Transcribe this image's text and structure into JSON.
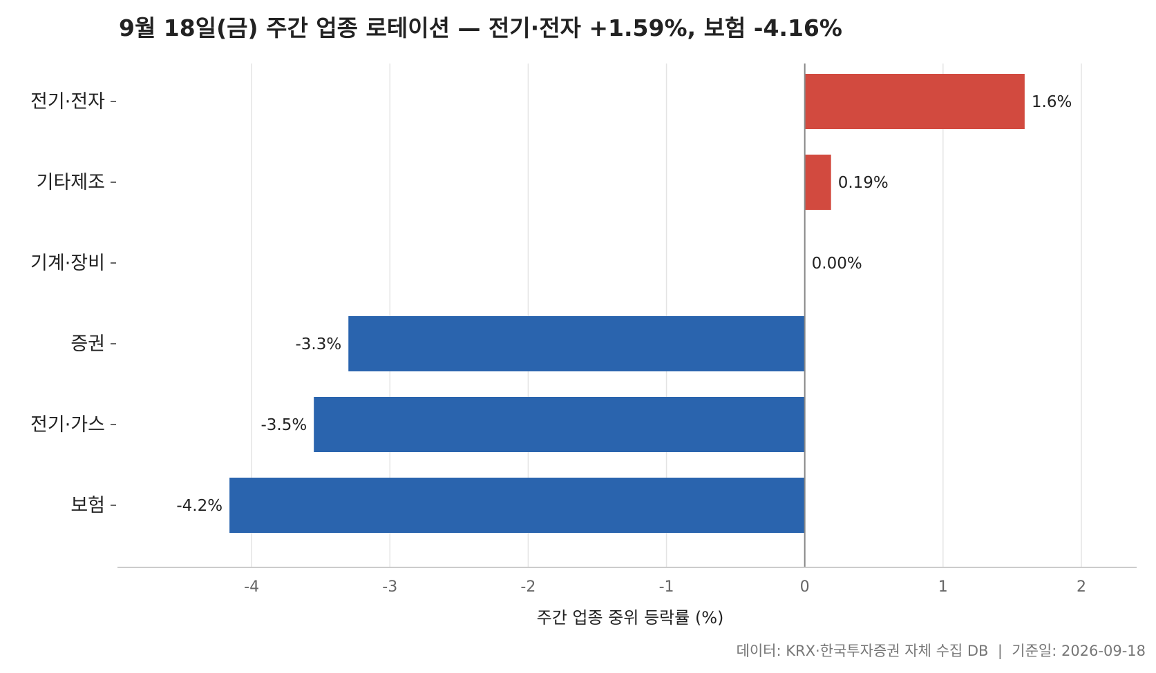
{
  "chart_data": {
    "type": "bar",
    "orientation": "horizontal",
    "title": "9월 18일(금) 주간 업종 로테이션 — 전기·전자 +1.59%, 보험 -4.16%",
    "xlabel": "주간 업종 중위 등락률 (%)",
    "ylabel": "",
    "categories": [
      "전기·전자",
      "기타제조",
      "기계·장비",
      "증권",
      "전기·가스",
      "보험"
    ],
    "values": [
      1.59,
      0.19,
      0.0,
      -3.3,
      -3.55,
      -4.16
    ],
    "value_labels": [
      "1.6%",
      "0.19%",
      "0.00%",
      "-3.3%",
      "-3.5%",
      "-4.2%"
    ],
    "xlim": [
      -4.97,
      2.4
    ],
    "xticks": [
      "-4",
      "-3",
      "-2",
      "-1",
      "0",
      "1",
      "2"
    ],
    "xtick_values": [
      -4,
      -3,
      -2,
      -1,
      0,
      1,
      2
    ],
    "grid": "vertical",
    "legend": "none",
    "colors": {
      "positive": "#d24a3f",
      "negative": "#2a64ae",
      "zero_line": "#888888",
      "grid": "#e4e4e4",
      "axis": "#cccccc"
    }
  },
  "footer": {
    "source": "데이터: KRX·한국투자증권 자체 수집 DB  |  기준일: 2026-09-18"
  }
}
